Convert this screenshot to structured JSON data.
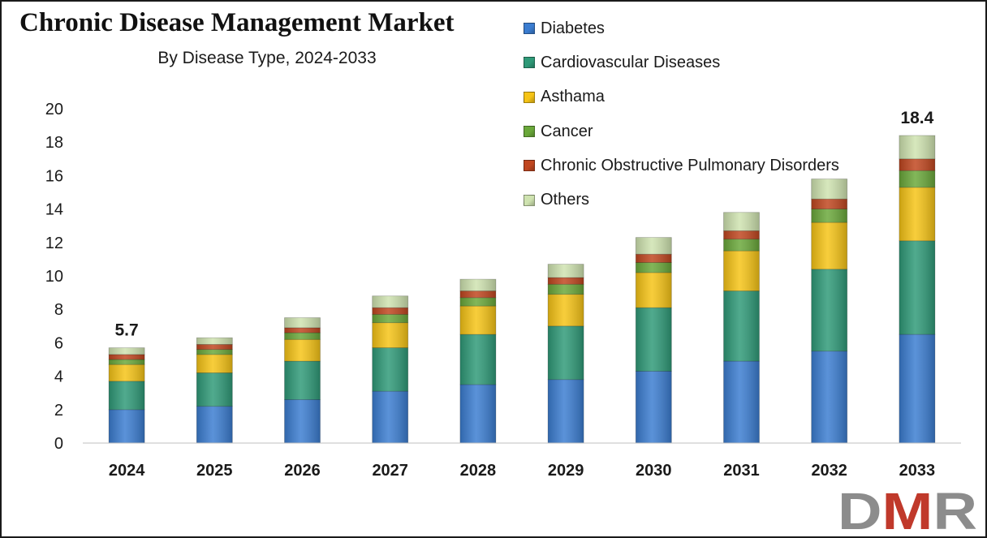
{
  "chart_data": {
    "type": "bar",
    "stacked": true,
    "title": "Chronic Disease Management Market",
    "subtitle": "By Disease Type, 2024-2033",
    "xlabel": "",
    "ylabel": "",
    "ylim": [
      0,
      20
    ],
    "yticks": [
      0,
      2,
      4,
      6,
      8,
      10,
      12,
      14,
      16,
      18,
      20
    ],
    "grid": false,
    "legend_position": "top-right",
    "categories": [
      "2024",
      "2025",
      "2026",
      "2027",
      "2028",
      "2029",
      "2030",
      "2031",
      "2032",
      "2033"
    ],
    "series": [
      {
        "name": "Diabetes",
        "color": "#3b7dd1",
        "values": [
          2.0,
          2.2,
          2.6,
          3.1,
          3.5,
          3.8,
          4.3,
          4.9,
          5.5,
          6.5
        ]
      },
      {
        "name": "Cardiovascular Diseases",
        "color": "#2f9a78",
        "values": [
          1.7,
          2.0,
          2.3,
          2.6,
          3.0,
          3.2,
          3.8,
          4.2,
          4.9,
          5.6
        ]
      },
      {
        "name": "Asthama",
        "color": "#f6c416",
        "values": [
          1.0,
          1.1,
          1.3,
          1.5,
          1.7,
          1.9,
          2.1,
          2.4,
          2.8,
          3.2
        ]
      },
      {
        "name": "Cancer",
        "color": "#6aa83a",
        "values": [
          0.3,
          0.3,
          0.4,
          0.5,
          0.5,
          0.6,
          0.6,
          0.7,
          0.8,
          1.0
        ]
      },
      {
        "name": "Chronic Obstructive Pulmonary Disorders",
        "color": "#c0461f",
        "values": [
          0.3,
          0.3,
          0.3,
          0.4,
          0.4,
          0.4,
          0.5,
          0.5,
          0.6,
          0.7
        ]
      },
      {
        "name": "Others",
        "color": "#cfe3b0",
        "values": [
          0.4,
          0.4,
          0.6,
          0.7,
          0.7,
          0.8,
          1.0,
          1.1,
          1.2,
          1.4
        ]
      }
    ],
    "data_labels": [
      {
        "category": "2024",
        "text": "5.7",
        "value": 5.7
      },
      {
        "category": "2033",
        "text": "18.4",
        "value": 18.4
      }
    ]
  },
  "logo": {
    "text": "DMR",
    "colors": [
      "#8c8c8c",
      "#c0392b",
      "#8c8c8c"
    ]
  }
}
